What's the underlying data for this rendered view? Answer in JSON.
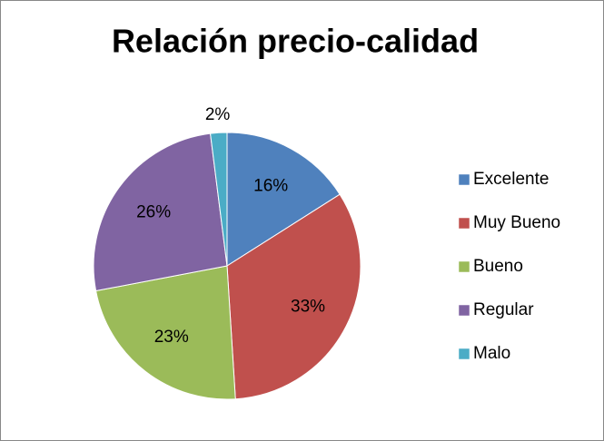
{
  "chart_data": {
    "type": "pie",
    "title": "Relación precio-calidad",
    "categories": [
      "Excelente",
      "Muy Bueno",
      "Bueno",
      "Regular",
      "Malo"
    ],
    "values": [
      16,
      33,
      23,
      26,
      2
    ],
    "value_labels": [
      "16%",
      "33%",
      "23%",
      "26%",
      "2%"
    ],
    "colors": [
      "#4f81bd",
      "#c0504d",
      "#9bbb59",
      "#8064a2",
      "#4bacc6"
    ],
    "legend": "right"
  }
}
